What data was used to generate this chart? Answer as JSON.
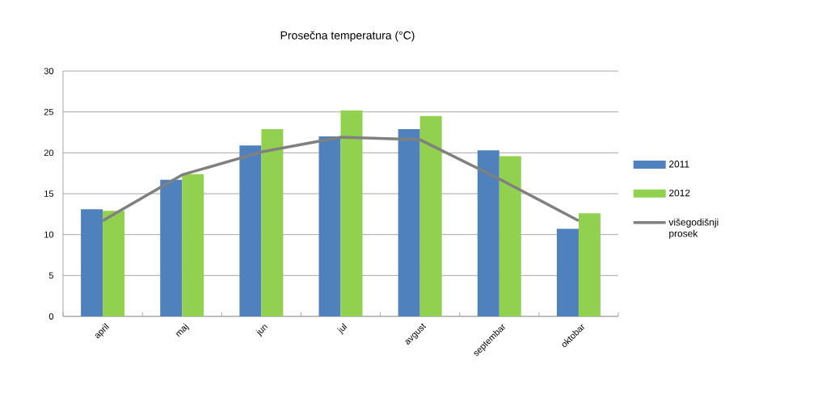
{
  "chart_data": {
    "type": "bar",
    "title": "Prosečna temperatura (°C)",
    "categories": [
      "april",
      "maj",
      "jun",
      "jul",
      "avgust",
      "septembar",
      "oktobar"
    ],
    "series": [
      {
        "name": "2011",
        "color": "#4f81bd",
        "values": [
          13.1,
          16.7,
          20.9,
          22.0,
          22.9,
          20.3,
          10.7
        ]
      },
      {
        "name": "2012",
        "color": "#92d050",
        "values": [
          12.9,
          17.4,
          22.9,
          25.2,
          24.5,
          19.6,
          12.6
        ]
      },
      {
        "name": "višegodišnji prosek",
        "type": "line",
        "color": "#808080",
        "values": [
          11.7,
          17.3,
          20.1,
          21.9,
          21.6,
          16.8,
          11.7
        ]
      }
    ],
    "ylim": [
      0,
      30
    ],
    "yticks": [
      0,
      5,
      10,
      15,
      20,
      25,
      30
    ],
    "grid": "y",
    "legend": "right",
    "marker": "none"
  }
}
